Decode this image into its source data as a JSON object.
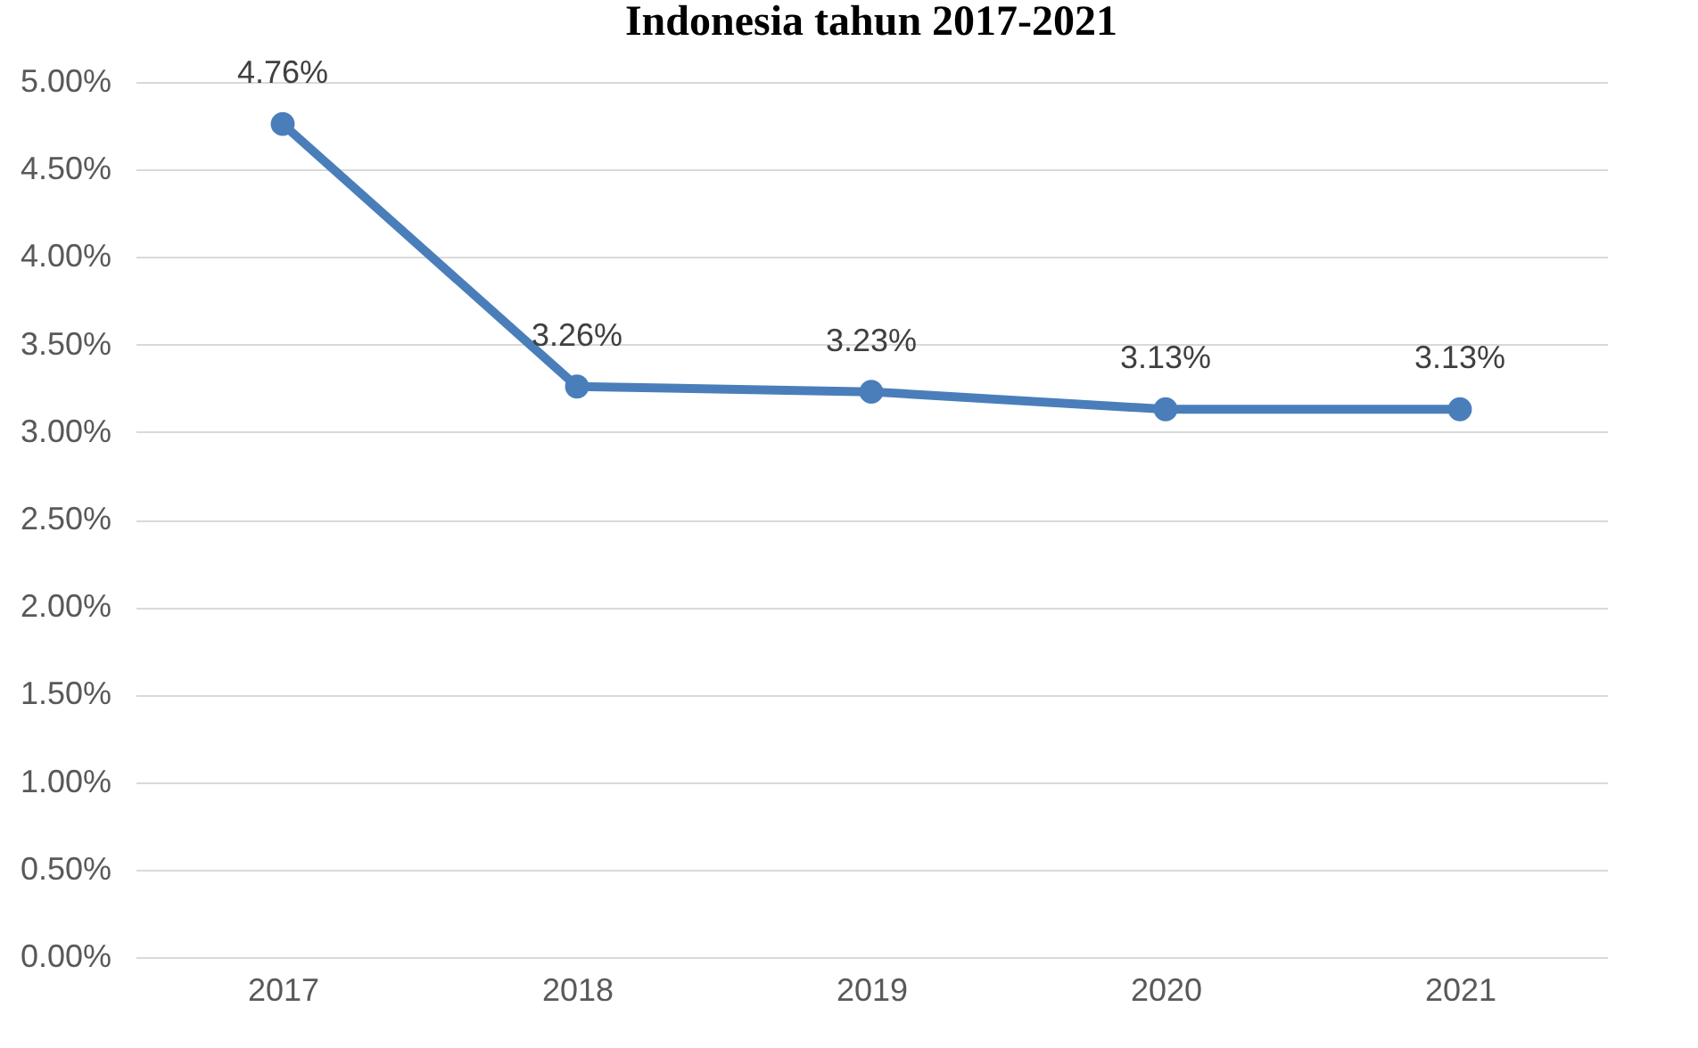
{
  "chart_data": {
    "type": "line",
    "title": "Indonesia tahun 2017-2021",
    "categories": [
      "2017",
      "2018",
      "2019",
      "2020",
      "2021"
    ],
    "series": [
      {
        "color": "#4a7ebb",
        "values": [
          4.76,
          3.26,
          3.23,
          3.13,
          3.13
        ],
        "value_labels": [
          "4.76%",
          "3.26%",
          "3.23%",
          "3.13%",
          "3.13%"
        ]
      }
    ],
    "ylim": [
      0,
      5
    ],
    "yticks": [
      {
        "value": 0,
        "label": "0.00%"
      },
      {
        "value": 0.5,
        "label": "0.50%"
      },
      {
        "value": 1,
        "label": "1.00%"
      },
      {
        "value": 1.5,
        "label": "1.50%"
      },
      {
        "value": 2,
        "label": "2.00%"
      },
      {
        "value": 2.5,
        "label": "2.50%"
      },
      {
        "value": 3,
        "label": "3.00%"
      },
      {
        "value": 3.5,
        "label": "3.50%"
      },
      {
        "value": 4,
        "label": "4.00%"
      },
      {
        "value": 4.5,
        "label": "4.50%"
      },
      {
        "value": 5,
        "label": "5.00%"
      }
    ],
    "grid": "y",
    "marker": "circle",
    "line_style": "solid"
  }
}
